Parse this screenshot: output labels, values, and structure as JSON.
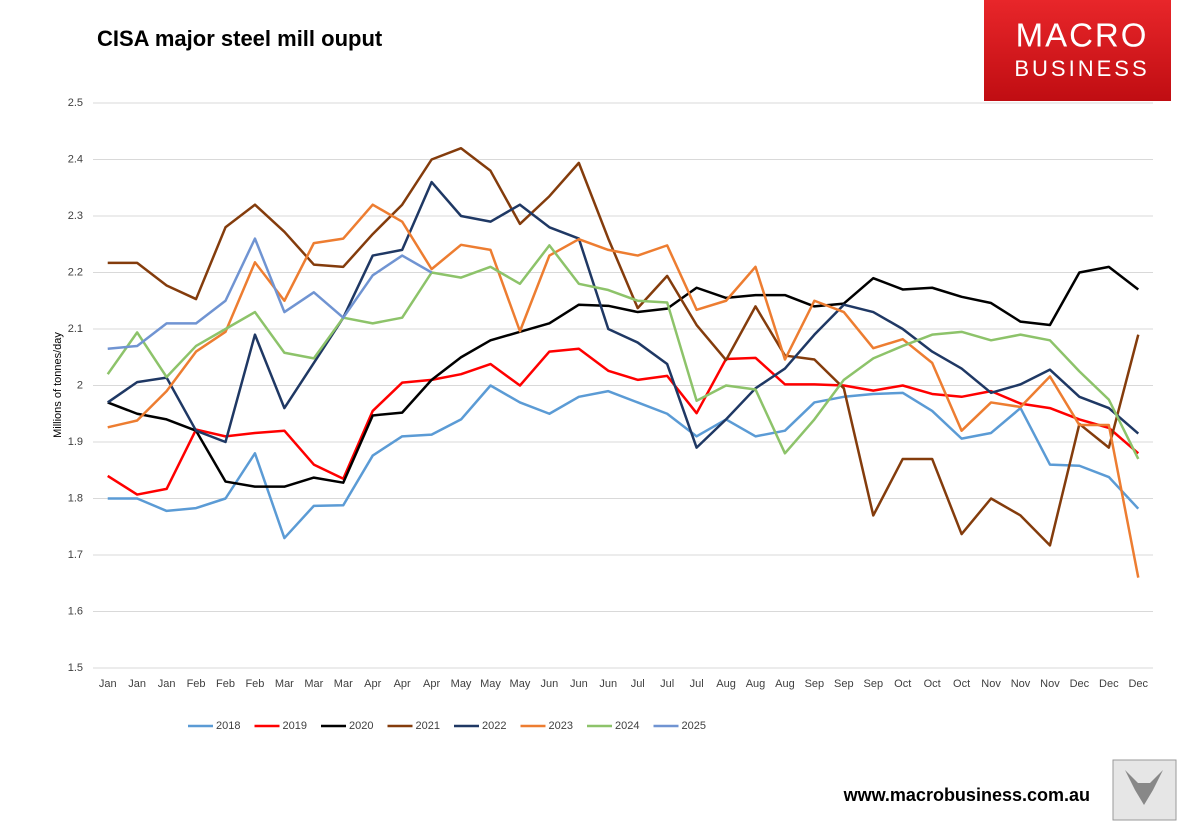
{
  "chart_data": {
    "type": "line",
    "title": "CISA major steel mill ouput",
    "ylabel": "Millions of tonnes/day",
    "categories": [
      "Jan",
      "Jan",
      "Jan",
      "Feb",
      "Feb",
      "Feb",
      "Mar",
      "Mar",
      "Mar",
      "Apr",
      "Apr",
      "Apr",
      "May",
      "May",
      "May",
      "Jun",
      "Jun",
      "Jun",
      "Jul",
      "Jul",
      "Jul",
      "Aug",
      "Aug",
      "Aug",
      "Sep",
      "Sep",
      "Sep",
      "Oct",
      "Oct",
      "Oct",
      "Nov",
      "Nov",
      "Nov",
      "Dec",
      "Dec",
      "Dec"
    ],
    "ylim": [
      1.5,
      2.5
    ],
    "yticks": [
      1.5,
      1.6,
      1.7,
      1.8,
      1.9,
      2,
      2.1,
      2.2,
      2.3,
      2.4,
      2.5
    ],
    "grid": true,
    "legend": "bottom",
    "series": [
      {
        "name": "2018",
        "color": "#5b9bd5",
        "values": [
          1.8,
          1.8,
          1.778,
          1.783,
          1.8,
          1.88,
          1.73,
          1.787,
          1.788,
          1.876,
          1.91,
          1.913,
          1.94,
          2.0,
          1.97,
          1.95,
          1.98,
          1.99,
          1.97,
          1.95,
          1.91,
          1.94,
          1.91,
          1.92,
          1.97,
          1.98,
          1.985,
          1.987,
          1.955,
          1.906,
          1.916,
          1.96,
          1.86,
          1.858,
          1.838,
          1.782
        ]
      },
      {
        "name": "2019",
        "color": "#ff0000",
        "values": [
          1.84,
          1.807,
          1.817,
          1.922,
          1.91,
          1.916,
          1.92,
          1.86,
          1.835,
          1.955,
          2.005,
          2.01,
          2.02,
          2.038,
          2.0,
          2.06,
          2.065,
          2.026,
          2.01,
          2.017,
          1.951,
          2.047,
          2.049,
          2.002,
          2.002,
          2.0,
          1.991,
          2.0,
          1.985,
          1.98,
          1.99,
          1.968,
          1.96,
          1.94,
          1.925,
          1.88
        ]
      },
      {
        "name": "2020",
        "color": "#000000",
        "values": [
          1.97,
          1.95,
          1.94,
          1.92,
          1.83,
          1.821,
          1.821,
          1.837,
          1.828,
          1.947,
          1.952,
          2.01,
          2.05,
          2.08,
          2.095,
          2.11,
          2.143,
          2.141,
          2.13,
          2.136,
          2.173,
          2.155,
          2.16,
          2.16,
          2.14,
          2.145,
          2.19,
          2.17,
          2.173,
          2.157,
          2.146,
          2.113,
          2.107,
          2.2,
          2.21,
          2.17
        ]
      },
      {
        "name": "2021",
        "color": "#843c0c",
        "values": [
          2.217,
          2.217,
          2.177,
          2.153,
          2.28,
          2.32,
          2.272,
          2.214,
          2.21,
          2.268,
          2.32,
          2.4,
          2.42,
          2.38,
          2.286,
          2.335,
          2.394,
          2.26,
          2.137,
          2.194,
          2.107,
          2.045,
          2.14,
          2.053,
          2.046,
          1.995,
          1.77,
          1.87,
          1.87,
          1.737,
          1.8,
          1.77,
          1.717,
          1.932,
          1.89,
          2.09
        ]
      },
      {
        "name": "2022",
        "color": "#1f3864",
        "values": [
          1.97,
          2.006,
          2.014,
          1.92,
          1.9,
          2.09,
          1.96,
          2.04,
          2.12,
          2.23,
          2.24,
          2.36,
          2.3,
          2.29,
          2.32,
          2.28,
          2.26,
          2.1,
          2.076,
          2.038,
          1.89,
          1.94,
          1.995,
          2.03,
          2.09,
          2.143,
          2.13,
          2.1,
          2.06,
          2.03,
          1.987,
          2.002,
          2.028,
          1.98,
          1.96,
          1.915
        ]
      },
      {
        "name": "2023",
        "color": "#ed7d31",
        "values": [
          1.926,
          1.938,
          1.99,
          2.06,
          2.095,
          2.218,
          2.15,
          2.252,
          2.26,
          2.32,
          2.29,
          2.206,
          2.249,
          2.24,
          2.096,
          2.23,
          2.259,
          2.24,
          2.23,
          2.248,
          2.134,
          2.15,
          2.21,
          2.046,
          2.15,
          2.13,
          2.066,
          2.082,
          2.04,
          1.92,
          1.97,
          1.962,
          2.016,
          1.93,
          1.93,
          1.66
        ]
      },
      {
        "name": "2024",
        "color": "#8dc36a",
        "values": [
          2.02,
          2.094,
          2.015,
          2.07,
          2.1,
          2.13,
          2.058,
          2.048,
          2.12,
          2.11,
          2.12,
          2.2,
          2.191,
          2.21,
          2.18,
          2.248,
          2.18,
          2.169,
          2.15,
          2.147,
          1.973,
          2.0,
          1.993,
          1.88,
          1.94,
          2.01,
          2.048,
          2.07,
          2.09,
          2.095,
          2.08,
          2.09,
          2.08,
          2.025,
          1.975,
          1.87
        ]
      },
      {
        "name": "2025",
        "color": "#7094d2",
        "values": [
          2.065,
          2.07,
          2.11,
          2.11,
          2.15,
          2.26,
          2.13,
          2.165,
          2.12,
          2.195,
          2.23,
          2.2,
          null,
          null,
          null,
          null,
          null,
          null,
          null,
          null,
          null,
          null,
          null,
          null,
          null,
          null,
          null,
          null,
          null,
          null,
          null,
          null,
          null,
          null,
          null,
          null
        ]
      }
    ]
  },
  "logo": {
    "line1": "MACRO",
    "line2": "BUSINESS"
  },
  "website": "www.macrobusiness.com.au"
}
